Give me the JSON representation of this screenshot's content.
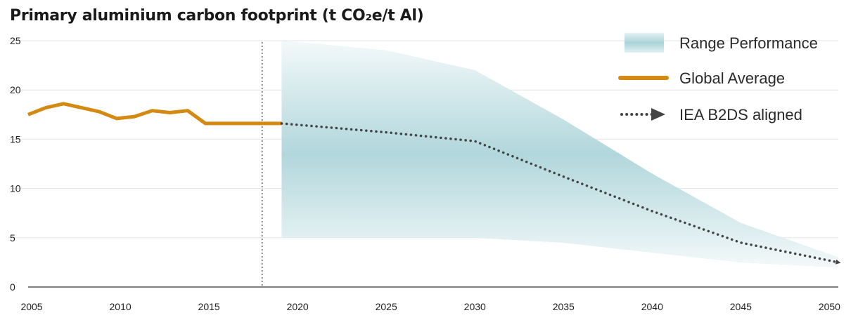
{
  "chart_data": {
    "type": "line",
    "title": "Primary aluminium carbon footprint (t CO₂e/t Al)",
    "xlabel": "",
    "ylabel": "",
    "xlim": [
      2004.8,
      2050.5
    ],
    "ylim": [
      0,
      25
    ],
    "x_ticks": [
      2005,
      2010,
      2015,
      2020,
      2025,
      2030,
      2035,
      2040,
      2045,
      2050
    ],
    "y_ticks": [
      0,
      5,
      10,
      15,
      20,
      25
    ],
    "grid": true,
    "legend_position": "top-right",
    "projection_marker_x": 2018,
    "series": [
      {
        "name": "Global Average",
        "style": "solid",
        "color": "#d48a12",
        "x": [
          2004.8,
          2005.8,
          2006.8,
          2007.8,
          2008.8,
          2009.8,
          2010.8,
          2011.8,
          2012.8,
          2013.8,
          2014.8,
          2019.1
        ],
        "y": [
          17.5,
          18.2,
          18.6,
          18.2,
          17.8,
          17.1,
          17.3,
          17.9,
          17.7,
          17.9,
          16.6,
          16.6
        ]
      },
      {
        "name": "IEA B2DS aligned",
        "style": "dotted-arrow",
        "color": "#444444",
        "x": [
          2019.1,
          2025,
          2030,
          2035,
          2040,
          2045,
          2050.5
        ],
        "y": [
          16.6,
          15.7,
          14.8,
          11.2,
          7.7,
          4.5,
          2.5
        ]
      },
      {
        "name": "Range Performance",
        "style": "band",
        "color": "#a9d3d8",
        "x": [
          2019.1,
          2025,
          2030,
          2035,
          2040,
          2045,
          2050.5
        ],
        "lower": [
          5,
          5,
          5,
          4.5,
          3.5,
          2.5,
          2
        ],
        "upper": [
          25,
          24,
          22,
          17,
          11.5,
          6.5,
          3
        ]
      }
    ]
  },
  "legend": {
    "items": [
      {
        "label": "Range Performance",
        "color": "#a9d3d8"
      },
      {
        "label": "Global Average",
        "color": "#d48a12"
      },
      {
        "label": "IEA B2DS aligned",
        "color": "#444444"
      }
    ]
  }
}
